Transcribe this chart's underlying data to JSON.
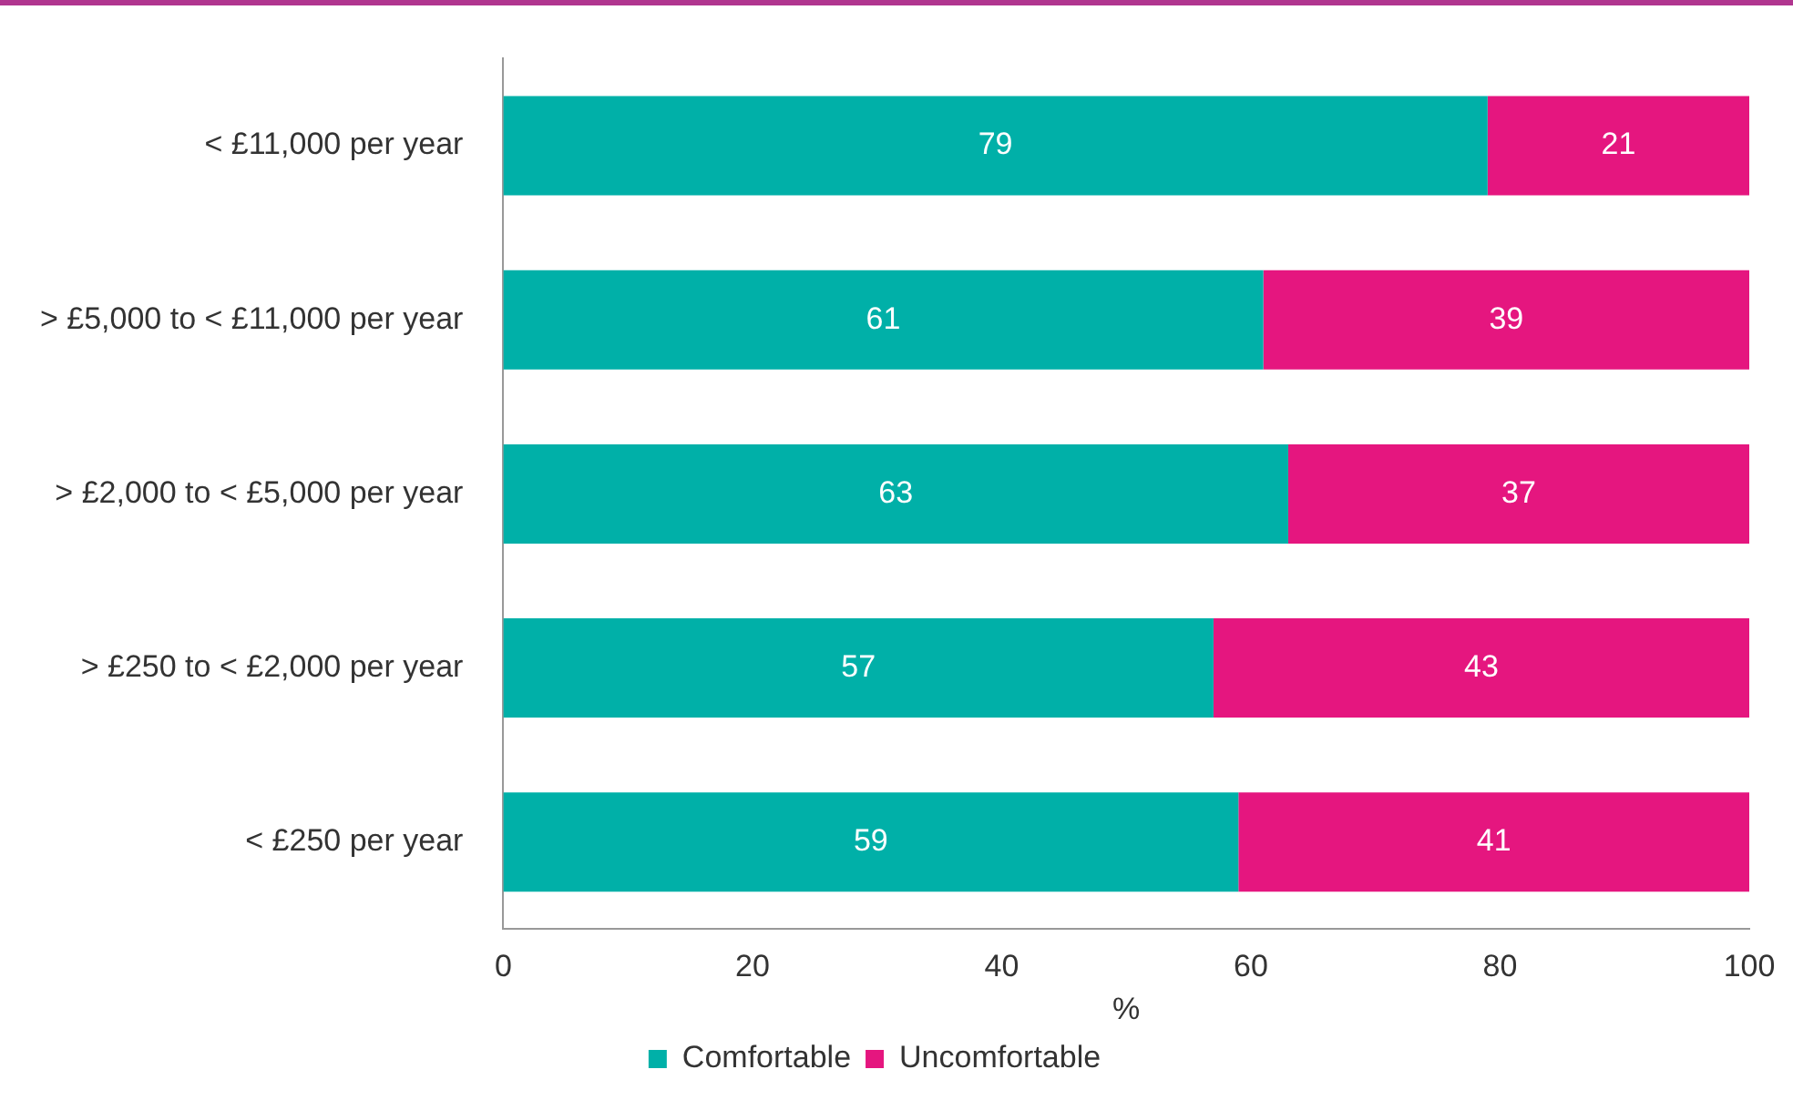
{
  "chart_data": {
    "type": "bar",
    "orientation": "horizontal",
    "stacked": true,
    "categories": [
      "< £11,000 per year",
      "> £5,000 to < £11,000 per year",
      "> £2,000 to < £5,000 per year",
      "> £250 to < £2,000 per year",
      "< £250 per year"
    ],
    "series": [
      {
        "name": "Comfortable",
        "color": "#00b0a8",
        "values": [
          79,
          61,
          63,
          57,
          59
        ]
      },
      {
        "name": "Uncomfortable",
        "color": "#e5167f",
        "values": [
          21,
          39,
          37,
          43,
          41
        ]
      }
    ],
    "xlabel": "%",
    "xlim": [
      0,
      100
    ],
    "xticks": [
      0,
      20,
      40,
      60,
      80,
      100
    ],
    "grid": false,
    "legend": "bottom",
    "data_labels": true
  }
}
